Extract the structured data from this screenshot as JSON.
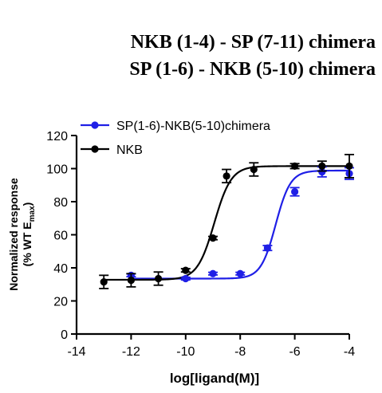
{
  "chart_data": {
    "type": "line",
    "title_lines": [
      "NKB (1-4) - SP (7-11) chimera",
      "SP (1-6) - NKB (5-10) chimera"
    ],
    "xlabel": "log[ligand(M)]",
    "ylabel_line1": "Normalized response",
    "ylabel_line2_prefix": "(% WT E",
    "ylabel_line2_sub": "max",
    "ylabel_line2_suffix": ")",
    "xlim": [
      -14,
      -4
    ],
    "ylim": [
      0,
      120
    ],
    "x_ticks": [
      -14,
      -12,
      -10,
      -8,
      -6,
      -4
    ],
    "y_ticks": [
      0,
      20,
      40,
      60,
      80,
      100,
      120
    ],
    "x_tick_labels": [
      "-14",
      "-12",
      "-10",
      "-8",
      "-6",
      "-4"
    ],
    "y_tick_labels": [
      "0",
      "20",
      "40",
      "60",
      "80",
      "100",
      "120"
    ],
    "legend_position": "top-left",
    "series": [
      {
        "name": "SP(1-6)-NKB(5-10)chimera",
        "color": "#1f1fe6",
        "x": [
          -12,
          -10,
          -9,
          -8,
          -7,
          -6,
          -5,
          -4
        ],
        "y": [
          35.5,
          33.5,
          36.5,
          36.5,
          52,
          86,
          98,
          97
        ],
        "err": [
          0.8,
          0.8,
          0.8,
          0.8,
          1.5,
          2.5,
          3,
          3.5
        ],
        "fit": {
          "bottom": 33.5,
          "top": 98.8,
          "logEC50": -6.7,
          "hill": 1.6
        }
      },
      {
        "name": "NKB",
        "color": "#000000",
        "x": [
          -13,
          -12,
          -11,
          -10,
          -9,
          -8.5,
          -7.5,
          -6,
          -5,
          -4
        ],
        "y": [
          31.5,
          32.5,
          33.5,
          38.5,
          58,
          95.5,
          99.5,
          101.5,
          101.5,
          101.5
        ],
        "err": [
          4,
          4,
          4,
          1,
          1,
          4,
          4,
          1.5,
          3,
          7
        ],
        "fit": {
          "bottom": 32.8,
          "top": 101.5,
          "logEC50": -8.95,
          "hill": 1.4
        }
      }
    ]
  }
}
